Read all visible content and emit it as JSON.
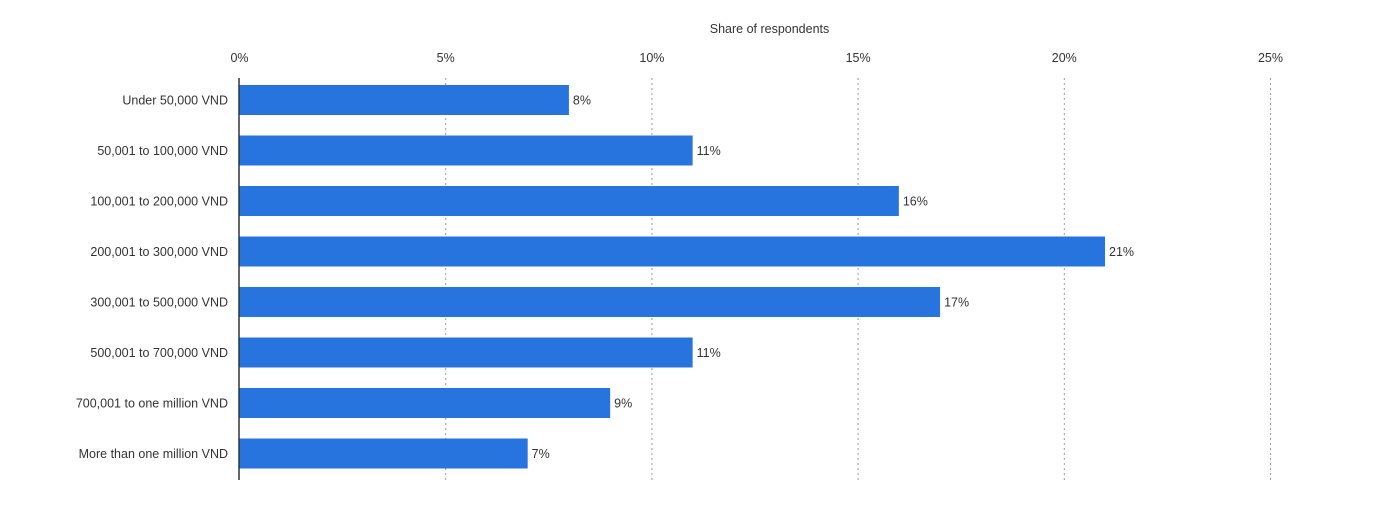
{
  "chart_data": {
    "type": "bar",
    "orientation": "horizontal",
    "title": "",
    "xlabel": "Share of respondents",
    "ylabel": "",
    "categories": [
      "Under 50,000 VND",
      "50,001 to 100,000 VND",
      "100,001 to 200,000 VND",
      "200,001 to 300,000 VND",
      "300,001 to 500,000 VND",
      "500,001 to 700,000 VND",
      "700,001 to one million VND",
      "More than one million VND"
    ],
    "values": [
      8,
      11,
      16,
      21,
      17,
      11,
      9,
      7
    ],
    "value_labels": [
      "8%",
      "11%",
      "16%",
      "21%",
      "17%",
      "11%",
      "9%",
      "7%"
    ],
    "xlim": [
      0,
      25
    ],
    "ticks": [
      0,
      5,
      10,
      15,
      20,
      25
    ],
    "tick_labels": [
      "0%",
      "5%",
      "10%",
      "15%",
      "20%",
      "25%"
    ],
    "axis_position": "top",
    "grid": true,
    "legend": "none",
    "colors": {
      "bar": "#2874de"
    }
  }
}
